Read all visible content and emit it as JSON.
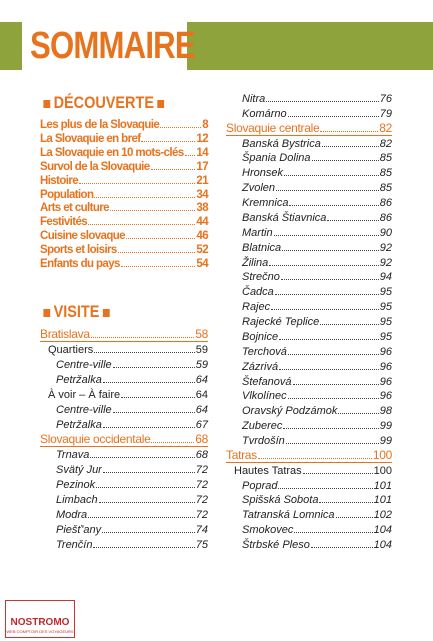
{
  "header": {
    "title": "SOMMAIRE"
  },
  "decouverte": {
    "title": "DÉCOUVERTE",
    "entries": [
      {
        "label": "Les plus de la Slovaquie",
        "page": 8
      },
      {
        "label": "La Slovaquie en bref",
        "page": 12
      },
      {
        "label": "La Slovaquie en 10 mots-clés",
        "page": 14
      },
      {
        "label": "Survol de la Slovaquie",
        "page": 17
      },
      {
        "label": "Histoire",
        "page": 21
      },
      {
        "label": "Population",
        "page": 34
      },
      {
        "label": "Arts et culture",
        "page": 38
      },
      {
        "label": "Festivités",
        "page": 44
      },
      {
        "label": "Cuisine slovaque",
        "page": 46
      },
      {
        "label": "Sports et loisirs",
        "page": 52
      },
      {
        "label": "Enfants du pays",
        "page": 54
      }
    ]
  },
  "visite": {
    "title": "VISITE",
    "regions": [
      {
        "label": "Bratislava",
        "page": 58,
        "subsections": [
          {
            "label": "Quartiers",
            "page": 59,
            "entries": [
              {
                "label": "Centre-ville",
                "page": 59
              },
              {
                "label": "Petržalka",
                "page": 64
              }
            ]
          },
          {
            "label": "À voir – À faire",
            "page": 64,
            "entries": [
              {
                "label": "Centre-ville",
                "page": 64
              },
              {
                "label": "Petržalka",
                "page": 67
              }
            ]
          }
        ]
      },
      {
        "label": "Slovaquie occidentale",
        "page": 68,
        "entries": [
          {
            "label": "Trnava",
            "page": 68
          },
          {
            "label": "Svätý Jur",
            "page": 72
          },
          {
            "label": "Pezinok",
            "page": 72
          },
          {
            "label": "Limbach",
            "page": 72
          },
          {
            "label": "Modra",
            "page": 72
          },
          {
            "label": "Piešť'any",
            "page": 74
          },
          {
            "label": "Trenčín",
            "page": 75
          },
          {
            "label": "Nitra",
            "page": 76
          },
          {
            "label": "Komárno",
            "page": 79
          }
        ]
      },
      {
        "label": "Slovaquie centrale",
        "page": 82,
        "entries": [
          {
            "label": "Banská Bystrica",
            "page": 82
          },
          {
            "label": "Špania Dolina",
            "page": 85
          },
          {
            "label": "Hronsek",
            "page": 85
          },
          {
            "label": "Zvolen",
            "page": 85
          },
          {
            "label": "Kremnica",
            "page": 86
          },
          {
            "label": "Banská Štiavnica",
            "page": 86
          },
          {
            "label": "Martin",
            "page": 90
          },
          {
            "label": "Blatnica",
            "page": 92
          },
          {
            "label": "Žilina",
            "page": 92
          },
          {
            "label": "Strečno",
            "page": 94
          },
          {
            "label": "Čadca",
            "page": 95
          },
          {
            "label": "Rajec",
            "page": 95
          },
          {
            "label": "Rajecké Teplice",
            "page": 95
          },
          {
            "label": "Bojnice",
            "page": 95
          },
          {
            "label": "Terchová",
            "page": 96
          },
          {
            "label": "Zázrivá",
            "page": 96
          },
          {
            "label": "Štefanová",
            "page": 96
          },
          {
            "label": "Vlkolínec",
            "page": 96
          },
          {
            "label": "Oravský Podzámok",
            "page": 98
          },
          {
            "label": "Zuberec",
            "page": 99
          },
          {
            "label": "Tvrdošín",
            "page": 99
          }
        ]
      },
      {
        "label": "Tatras",
        "page": 100,
        "subsections": [
          {
            "label": "Hautes Tatras",
            "page": 100,
            "entries": [
              {
                "label": "Poprad",
                "page": 101
              },
              {
                "label": "Spišská Sobota",
                "page": 101
              },
              {
                "label": "Tatranská Lomnica",
                "page": 102
              },
              {
                "label": "Smokovec",
                "page": 104
              },
              {
                "label": "Štrbské Pleso",
                "page": 104
              }
            ]
          }
        ]
      }
    ]
  },
  "logo": {
    "name": "NOSTROMO",
    "tagline": "WEB COMPTOIR DES VOYAGEURS"
  }
}
